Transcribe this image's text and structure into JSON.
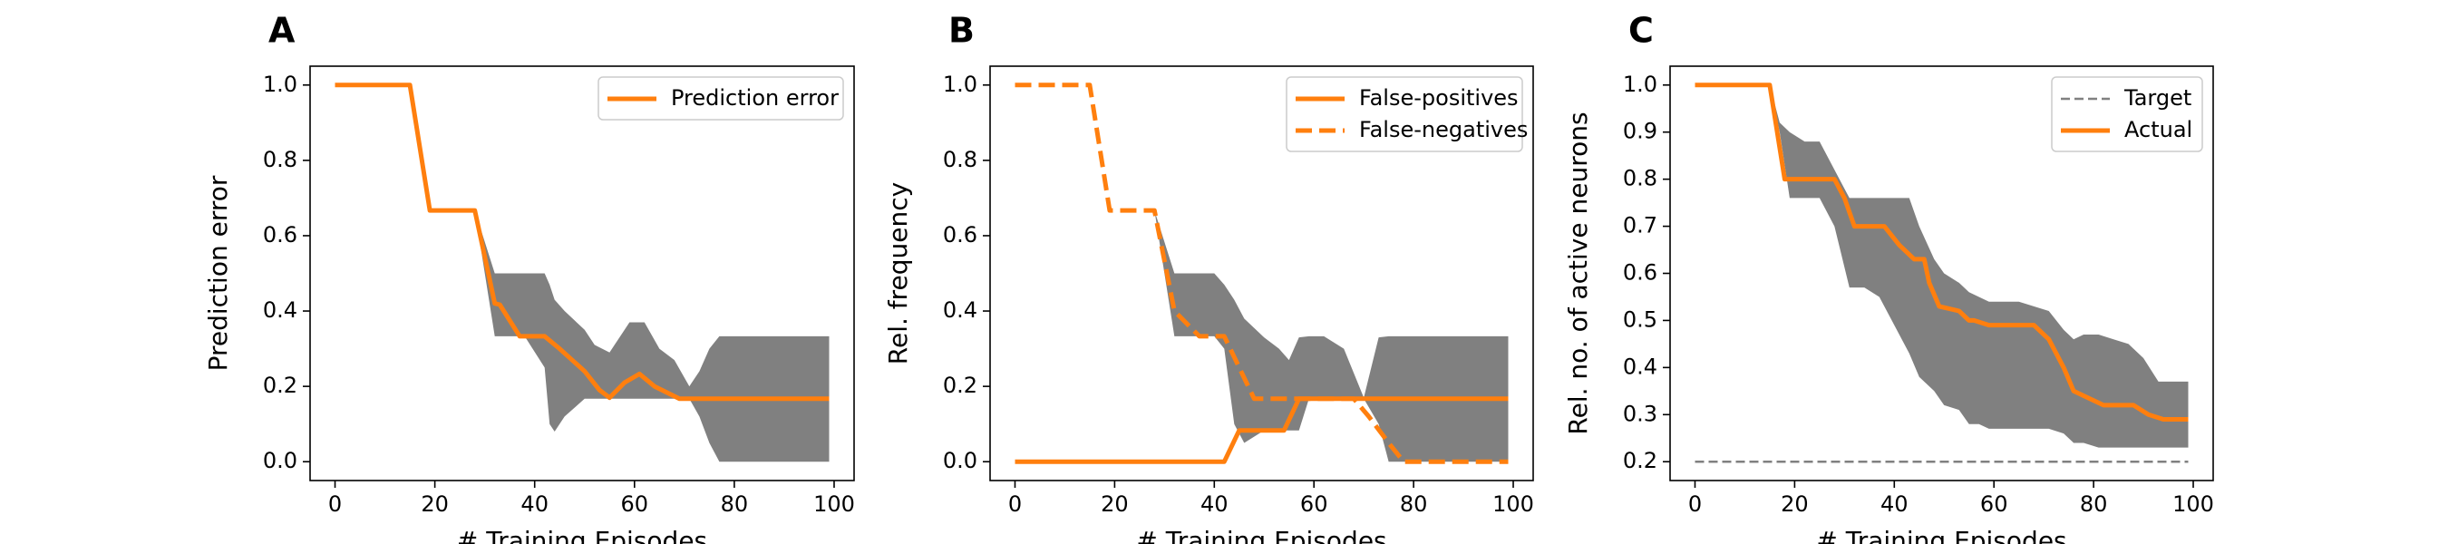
{
  "colors": {
    "orange": "#ff7f0e",
    "band": "#808080",
    "target": "#808080",
    "frame": "#000000"
  },
  "chart_data": [
    {
      "panel_label": "A",
      "type": "line",
      "xlabel": "# Training Episodes",
      "ylabel": "Prediction error",
      "xlim": [
        -5,
        104
      ],
      "ylim": [
        -0.05,
        1.05
      ],
      "xticks": [
        0,
        20,
        40,
        60,
        80,
        100
      ],
      "yticks": [
        0.0,
        0.2,
        0.4,
        0.6,
        0.8,
        1.0
      ],
      "ytick_decimals": 1,
      "legend_position": "top-right",
      "series": [
        {
          "name": "Prediction error",
          "style": "solid",
          "x": [
            0,
            15,
            19,
            28,
            32,
            33,
            37,
            42,
            45,
            50,
            53,
            55,
            58,
            61,
            64,
            69,
            75,
            99
          ],
          "y": [
            1.0,
            1.0,
            0.667,
            0.667,
            0.42,
            0.417,
            0.333,
            0.333,
            0.3,
            0.24,
            0.19,
            0.17,
            0.21,
            0.233,
            0.2,
            0.167,
            0.167,
            0.167
          ]
        }
      ],
      "band": {
        "x": [
          28,
          32,
          38,
          42,
          43,
          44,
          46,
          50,
          52,
          55,
          57,
          59,
          62,
          65,
          68,
          71,
          73,
          75,
          77,
          80,
          99
        ],
        "upper": [
          0.667,
          0.5,
          0.5,
          0.5,
          0.47,
          0.43,
          0.4,
          0.35,
          0.31,
          0.29,
          0.33,
          0.37,
          0.37,
          0.3,
          0.27,
          0.2,
          0.24,
          0.3,
          0.333,
          0.333,
          0.333
        ],
        "lower": [
          0.667,
          0.333,
          0.333,
          0.25,
          0.1,
          0.08,
          0.12,
          0.167,
          0.167,
          0.167,
          0.167,
          0.167,
          0.167,
          0.167,
          0.167,
          0.167,
          0.12,
          0.05,
          0.0,
          0.0,
          0.0
        ]
      }
    },
    {
      "panel_label": "B",
      "type": "line",
      "xlabel": "# Training Episodes",
      "ylabel": "Rel. frequency",
      "xlim": [
        -5,
        104
      ],
      "ylim": [
        -0.05,
        1.05
      ],
      "xticks": [
        0,
        20,
        40,
        60,
        80,
        100
      ],
      "yticks": [
        0.0,
        0.2,
        0.4,
        0.6,
        0.8,
        1.0
      ],
      "ytick_decimals": 1,
      "legend_position": "top-right",
      "series": [
        {
          "name": "False-positives",
          "style": "solid",
          "x": [
            0,
            42,
            45,
            48,
            54,
            57,
            60,
            99
          ],
          "y": [
            0.0,
            0.0,
            0.083,
            0.083,
            0.083,
            0.167,
            0.167,
            0.167
          ]
        },
        {
          "name": "False-negatives",
          "style": "dashed",
          "x": [
            0,
            15,
            19,
            28,
            32,
            37,
            42,
            45,
            48,
            55,
            68,
            71,
            75,
            78,
            99
          ],
          "y": [
            1.0,
            1.0,
            0.667,
            0.667,
            0.4,
            0.333,
            0.333,
            0.25,
            0.167,
            0.167,
            0.167,
            0.12,
            0.05,
            0.0,
            0.0
          ]
        }
      ],
      "band": {
        "x": [
          28,
          32,
          40,
          42,
          44,
          46,
          50,
          53,
          55,
          57,
          59,
          62,
          66,
          70,
          73,
          75,
          80,
          99
        ],
        "upper": [
          0.667,
          0.5,
          0.5,
          0.47,
          0.43,
          0.38,
          0.33,
          0.3,
          0.27,
          0.33,
          0.333,
          0.333,
          0.3,
          0.17,
          0.33,
          0.333,
          0.333,
          0.333
        ],
        "lower": [
          0.667,
          0.333,
          0.333,
          0.3,
          0.1,
          0.05,
          0.083,
          0.083,
          0.083,
          0.083,
          0.167,
          0.167,
          0.167,
          0.167,
          0.1,
          0.0,
          0.0,
          0.0
        ]
      }
    },
    {
      "panel_label": "C",
      "type": "line",
      "xlabel": "# Training Episodes",
      "ylabel": "Rel. no. of active neurons",
      "xlim": [
        -5,
        104
      ],
      "ylim": [
        0.16,
        1.04
      ],
      "xticks": [
        0,
        20,
        40,
        60,
        80,
        100
      ],
      "yticks": [
        0.2,
        0.3,
        0.4,
        0.5,
        0.6,
        0.7,
        0.8,
        0.9,
        1.0
      ],
      "ytick_decimals": 1,
      "legend_position": "top-right",
      "series": [
        {
          "name": "Target",
          "style": "dashed-thin",
          "x": [
            0,
            99
          ],
          "y": [
            0.2,
            0.2
          ]
        },
        {
          "name": "Actual",
          "style": "solid",
          "x": [
            0,
            15,
            18,
            28,
            30,
            32,
            38,
            41,
            44,
            46,
            47,
            49,
            53,
            55,
            56,
            59,
            65,
            68,
            71,
            74,
            76,
            78,
            82,
            85,
            88,
            91,
            94,
            99
          ],
          "y": [
            1.0,
            1.0,
            0.8,
            0.8,
            0.76,
            0.7,
            0.7,
            0.66,
            0.63,
            0.63,
            0.58,
            0.53,
            0.52,
            0.5,
            0.5,
            0.49,
            0.49,
            0.49,
            0.46,
            0.4,
            0.35,
            0.34,
            0.32,
            0.32,
            0.32,
            0.3,
            0.29,
            0.29
          ]
        }
      ],
      "band": {
        "x": [
          15,
          17,
          19,
          22,
          25,
          28,
          31,
          34,
          37,
          40,
          43,
          45,
          48,
          50,
          53,
          55,
          57,
          59,
          62,
          65,
          68,
          71,
          74,
          76,
          78,
          81,
          84,
          87,
          90,
          93,
          96,
          99
        ],
        "upper": [
          1.0,
          0.92,
          0.9,
          0.88,
          0.88,
          0.82,
          0.76,
          0.76,
          0.76,
          0.76,
          0.76,
          0.7,
          0.63,
          0.6,
          0.58,
          0.56,
          0.55,
          0.54,
          0.54,
          0.54,
          0.53,
          0.52,
          0.48,
          0.46,
          0.47,
          0.47,
          0.46,
          0.45,
          0.42,
          0.37,
          0.37,
          0.37
        ],
        "lower": [
          1.0,
          0.9,
          0.76,
          0.76,
          0.76,
          0.7,
          0.57,
          0.57,
          0.55,
          0.49,
          0.43,
          0.38,
          0.35,
          0.32,
          0.31,
          0.28,
          0.28,
          0.27,
          0.27,
          0.27,
          0.27,
          0.27,
          0.26,
          0.24,
          0.24,
          0.23,
          0.23,
          0.23,
          0.23,
          0.23,
          0.23,
          0.23
        ]
      }
    }
  ]
}
